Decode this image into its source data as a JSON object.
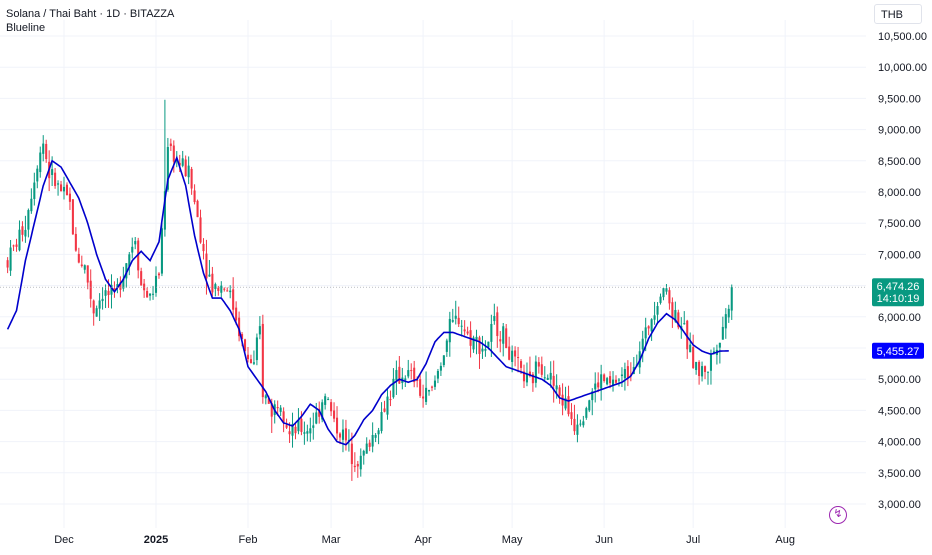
{
  "header": {
    "symbol_title": "Solana / Thai Baht · 1D · BITAZZA",
    "indicator_name": "Blueline"
  },
  "currency_label": "THB",
  "badges": {
    "price": {
      "value": "6,474.26",
      "countdown": "14:10:19",
      "price": 6474.26,
      "color": "#089981"
    },
    "blueline": {
      "value": "5,455.27",
      "price": 5455.27,
      "color": "#0000ff"
    }
  },
  "icons": {
    "alert": "lightning-bolt-icon"
  },
  "colors": {
    "up": "#089981",
    "down": "#f23645",
    "blueline": "#0000cc",
    "grid": "#f0f3fa",
    "text": "#131722"
  },
  "chart_data": {
    "type": "candlestick",
    "title": "Solana / Thai Baht · 1D · BITAZZA",
    "y_axis": {
      "ticks": [
        3000,
        3500,
        4000,
        4500,
        5000,
        5500,
        6000,
        6500,
        7000,
        7500,
        8000,
        8500,
        9000,
        9500,
        10000,
        10500
      ],
      "tick_labels": [
        "3,000.00",
        "3,500.00",
        "4,000.00",
        "4,500.00",
        "5,000.00",
        "5,500.00",
        "6,000.00",
        "6,500.00",
        "7,000.00",
        "7,500.00",
        "8,000.00",
        "8,500.00",
        "9,000.00",
        "9,500.00",
        "10,000.00",
        "10,500.00"
      ],
      "range": [
        2900,
        10700
      ]
    },
    "x_axis": {
      "labels": [
        {
          "text": "Dec",
          "bold": false,
          "day": 10
        },
        {
          "text": "2025",
          "bold": true,
          "day": 41
        },
        {
          "text": "Feb",
          "bold": false,
          "day": 72
        },
        {
          "text": "Mar",
          "bold": false,
          "day": 100
        },
        {
          "text": "Apr",
          "bold": false,
          "day": 131
        },
        {
          "text": "May",
          "bold": false,
          "day": 161
        },
        {
          "text": "Jun",
          "bold": false,
          "day": 192
        },
        {
          "text": "Jul",
          "bold": false,
          "day": 222
        },
        {
          "text": "Aug",
          "bold": false,
          "day": 253
        }
      ],
      "day_range": [
        -9,
        276
      ]
    },
    "anchors": [
      [
        -9,
        6900
      ],
      [
        -3,
        7500
      ],
      [
        1,
        8500
      ],
      [
        3,
        8800
      ],
      [
        5,
        8300
      ],
      [
        9,
        8000
      ],
      [
        12,
        7800
      ],
      [
        14,
        7000
      ],
      [
        17,
        6800
      ],
      [
        20,
        6100
      ],
      [
        23,
        6400
      ],
      [
        27,
        6300
      ],
      [
        31,
        6900
      ],
      [
        34,
        7300
      ],
      [
        36,
        6500
      ],
      [
        39,
        6300
      ],
      [
        42,
        6700
      ],
      [
        45,
        8800
      ],
      [
        48,
        8500
      ],
      [
        52,
        8300
      ],
      [
        55,
        7600
      ],
      [
        58,
        6800
      ],
      [
        60,
        6500
      ],
      [
        63,
        6500
      ],
      [
        65,
        6500
      ],
      [
        68,
        6000
      ],
      [
        71,
        5400
      ],
      [
        74,
        5200
      ],
      [
        76,
        5800
      ],
      [
        77,
        4800
      ],
      [
        80,
        4500
      ],
      [
        83,
        4700
      ],
      [
        86,
        4100
      ],
      [
        89,
        4200
      ],
      [
        92,
        4200
      ],
      [
        95,
        4400
      ],
      [
        98,
        4800
      ],
      [
        101,
        4300
      ],
      [
        104,
        4100
      ],
      [
        107,
        3800
      ],
      [
        110,
        3700
      ],
      [
        113,
        4000
      ],
      [
        116,
        4300
      ],
      [
        119,
        4700
      ],
      [
        122,
        5000
      ],
      [
        125,
        5100
      ],
      [
        128,
        5000
      ],
      [
        131,
        4700
      ],
      [
        134,
        4800
      ],
      [
        137,
        5300
      ],
      [
        140,
        5800
      ],
      [
        143,
        6000
      ],
      [
        146,
        5700
      ],
      [
        149,
        5600
      ],
      [
        152,
        5500
      ],
      [
        155,
        5900
      ],
      [
        158,
        5700
      ],
      [
        161,
        5300
      ],
      [
        164,
        5100
      ],
      [
        167,
        4900
      ],
      [
        170,
        5300
      ],
      [
        173,
        5100
      ],
      [
        176,
        4800
      ],
      [
        179,
        4600
      ],
      [
        182,
        4300
      ],
      [
        185,
        4500
      ],
      [
        188,
        4800
      ],
      [
        191,
        5000
      ],
      [
        194,
        4900
      ],
      [
        197,
        5000
      ],
      [
        200,
        5100
      ],
      [
        203,
        5400
      ],
      [
        206,
        5700
      ],
      [
        209,
        6200
      ],
      [
        212,
        6500
      ],
      [
        215,
        6100
      ],
      [
        218,
        5900
      ],
      [
        221,
        5400
      ],
      [
        224,
        5100
      ],
      [
        227,
        5200
      ],
      [
        230,
        5600
      ],
      [
        233,
        6000
      ],
      [
        235,
        6474
      ]
    ],
    "blueline_anchors": [
      [
        -9,
        5800
      ],
      [
        -6,
        6100
      ],
      [
        -3,
        6900
      ],
      [
        0,
        7500
      ],
      [
        3,
        8100
      ],
      [
        6,
        8500
      ],
      [
        9,
        8400
      ],
      [
        12,
        8150
      ],
      [
        15,
        7900
      ],
      [
        18,
        7500
      ],
      [
        21,
        7000
      ],
      [
        24,
        6600
      ],
      [
        27,
        6400
      ],
      [
        30,
        6600
      ],
      [
        33,
        6900
      ],
      [
        36,
        7050
      ],
      [
        39,
        6900
      ],
      [
        42,
        7200
      ],
      [
        45,
        8200
      ],
      [
        48,
        8550
      ],
      [
        51,
        8100
      ],
      [
        54,
        7300
      ],
      [
        57,
        6700
      ],
      [
        60,
        6300
      ],
      [
        63,
        6300
      ],
      [
        66,
        6100
      ],
      [
        69,
        5800
      ],
      [
        72,
        5200
      ],
      [
        75,
        5000
      ],
      [
        78,
        4800
      ],
      [
        81,
        4500
      ],
      [
        84,
        4300
      ],
      [
        87,
        4250
      ],
      [
        90,
        4400
      ],
      [
        93,
        4600
      ],
      [
        96,
        4500
      ],
      [
        99,
        4200
      ],
      [
        102,
        4000
      ],
      [
        105,
        3950
      ],
      [
        108,
        4100
      ],
      [
        111,
        4350
      ],
      [
        114,
        4500
      ],
      [
        117,
        4750
      ],
      [
        120,
        4900
      ],
      [
        123,
        5000
      ],
      [
        126,
        4950
      ],
      [
        129,
        5000
      ],
      [
        132,
        5250
      ],
      [
        135,
        5600
      ],
      [
        138,
        5750
      ],
      [
        141,
        5750
      ],
      [
        144,
        5700
      ],
      [
        147,
        5650
      ],
      [
        150,
        5600
      ],
      [
        153,
        5500
      ],
      [
        156,
        5350
      ],
      [
        159,
        5200
      ],
      [
        162,
        5150
      ],
      [
        165,
        5100
      ],
      [
        168,
        5050
      ],
      [
        171,
        5000
      ],
      [
        174,
        4900
      ],
      [
        177,
        4700
      ],
      [
        180,
        4650
      ],
      [
        183,
        4700
      ],
      [
        186,
        4750
      ],
      [
        189,
        4800
      ],
      [
        192,
        4850
      ],
      [
        195,
        4900
      ],
      [
        198,
        4950
      ],
      [
        201,
        5050
      ],
      [
        204,
        5300
      ],
      [
        207,
        5650
      ],
      [
        210,
        5900
      ],
      [
        213,
        6050
      ],
      [
        216,
        5950
      ],
      [
        219,
        5750
      ],
      [
        222,
        5550
      ],
      [
        225,
        5450
      ],
      [
        228,
        5400
      ],
      [
        231,
        5450
      ],
      [
        234,
        5455
      ]
    ]
  }
}
